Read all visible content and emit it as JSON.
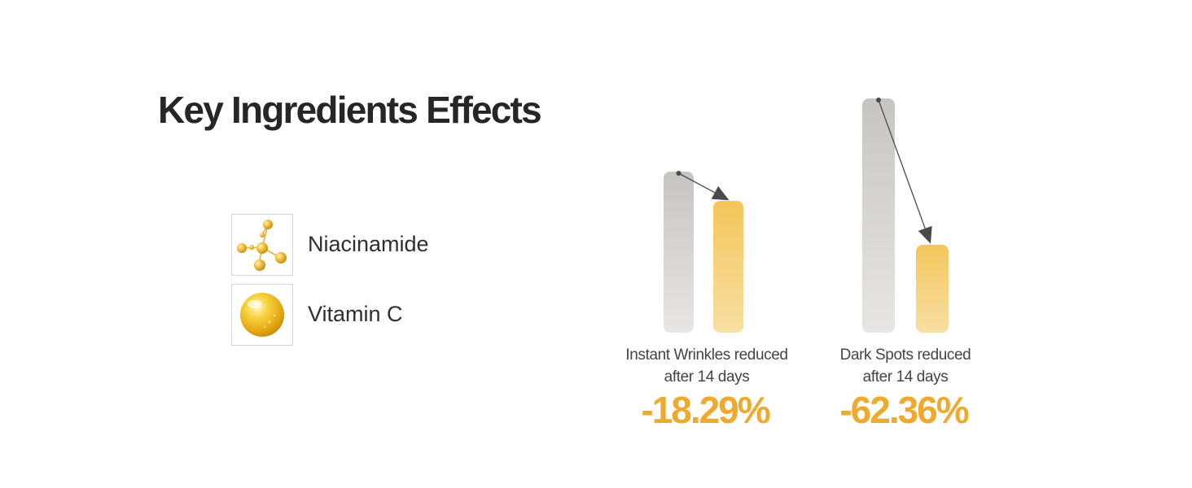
{
  "title": "Key Ingredients Effects",
  "ingredients": [
    {
      "name": "Niacinamide",
      "icon": "molecule-icon"
    },
    {
      "name": "Vitamin C",
      "icon": "vitamin-c-droplet-icon"
    }
  ],
  "chart_data": {
    "type": "bar",
    "categories": [
      "Instant Wrinkles reduced after 14 days",
      "Dark Spots reduced after 14 days"
    ],
    "groups": [
      {
        "label_line1": "Instant Wrinkles reduced",
        "label_line2": "after 14 days",
        "change_text": "-18.29%",
        "before": 100,
        "after": 81.71
      },
      {
        "label_line1": "Dark Spots reduced",
        "label_line2": "after 14 days",
        "change_text": "-62.36%",
        "before": 100,
        "after": 37.64
      }
    ],
    "colors": {
      "before": "#c9c8c6",
      "after": "#f4c65a",
      "value_text": "#efaa2e",
      "arrow": "#4a4a4a"
    },
    "grid": false,
    "legend": "none"
  }
}
